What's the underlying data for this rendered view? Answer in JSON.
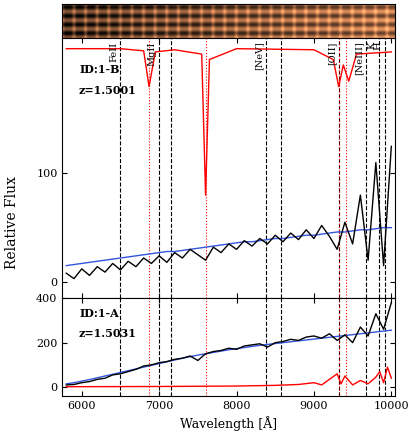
{
  "ylabel": "Relative Flux",
  "chart_data": [
    {
      "type": "line",
      "annotations": [
        "ID:1-B",
        "z=1.5001"
      ],
      "xlim": [
        5750,
        10050
      ],
      "ylim": [
        -15,
        225
      ],
      "xticks": [
        6000,
        7000,
        8000,
        9000,
        10000
      ],
      "yticks": [
        0,
        100
      ],
      "tick_labels": "y",
      "vlines": [
        {
          "x": 6500,
          "label": "FeII",
          "color": "#000000",
          "line_style": "dashed"
        },
        {
          "x": 7000,
          "label": "MgII",
          "color": "#000000",
          "line_style": "dashed"
        },
        {
          "x": 7150,
          "color": "#000000",
          "line_style": "dashed"
        },
        {
          "x": 8380,
          "label": "[NeV]",
          "color": "#000000",
          "line_style": "dashed"
        },
        {
          "x": 8570,
          "color": "#000000",
          "line_style": "dashed"
        },
        {
          "x": 9320,
          "label": "[OII]",
          "color": "#000000",
          "line_style": "dashed"
        },
        {
          "x": 9670,
          "label": "[NeIII]",
          "color": "#000000",
          "line_style": "dashed"
        },
        {
          "x": 9840,
          "label": "K",
          "color": "#000000",
          "line_style": "dashed"
        },
        {
          "x": 9920,
          "label": "H",
          "color": "#000000",
          "line_style": "dashed"
        },
        {
          "x": 6870,
          "color": "#ff0000",
          "line_style": "dotted"
        },
        {
          "x": 7600,
          "color": "#ff0000",
          "line_style": "dotted"
        },
        {
          "x": 9330,
          "color": "#ff0000",
          "line_style": "dotted"
        },
        {
          "x": 9420,
          "color": "#ff0000",
          "line_style": "dotted"
        }
      ],
      "series": [
        {
          "color": "#ff0000",
          "x": [
            5800,
            6500,
            6800,
            6870,
            6950,
            7200,
            7550,
            7600,
            7650,
            8000,
            9000,
            9250,
            9320,
            9380,
            9450,
            9550,
            10000
          ],
          "values": [
            215,
            215,
            213,
            180,
            212,
            214,
            210,
            80,
            205,
            215,
            214,
            205,
            180,
            200,
            185,
            210,
            212
          ]
        },
        {
          "color": "#3355dd",
          "x": [
            5800,
            5900,
            6000,
            6100,
            6200,
            6300,
            6400,
            6500,
            6600,
            6700,
            6800,
            6900,
            7000,
            7100,
            7200,
            7300,
            7400,
            7500,
            7600,
            7700,
            7800,
            7900,
            8000,
            8100,
            8200,
            8300,
            8400,
            8500,
            8600,
            8700,
            8800,
            8900,
            9000,
            9100,
            9200,
            9300,
            9400,
            9500,
            9600,
            9700,
            9800,
            9900,
            10000
          ],
          "values": [
            15,
            16,
            17,
            18,
            19,
            20,
            21,
            22,
            23,
            24,
            25,
            26,
            27,
            28,
            28,
            29,
            30,
            31,
            32,
            33,
            34,
            35,
            36,
            37,
            37,
            38,
            39,
            40,
            40,
            41,
            42,
            43,
            43,
            44,
            45,
            46,
            46,
            47,
            48,
            48,
            49,
            50,
            50
          ]
        },
        {
          "color": "#000000",
          "x": [
            5800,
            5900,
            6000,
            6100,
            6200,
            6300,
            6400,
            6500,
            6600,
            6700,
            6800,
            6900,
            7000,
            7100,
            7200,
            7300,
            7400,
            7500,
            7600,
            7700,
            7800,
            7900,
            8000,
            8100,
            8200,
            8300,
            8400,
            8500,
            8600,
            8700,
            8800,
            8900,
            9000,
            9100,
            9200,
            9300,
            9400,
            9500,
            9600,
            9700,
            9800,
            9900,
            10000
          ],
          "values": [
            8,
            3,
            12,
            6,
            14,
            9,
            17,
            11,
            19,
            14,
            22,
            17,
            24,
            18,
            27,
            22,
            30,
            25,
            20,
            32,
            27,
            35,
            30,
            38,
            33,
            40,
            35,
            43,
            37,
            45,
            39,
            48,
            40,
            52,
            42,
            30,
            55,
            35,
            80,
            20,
            110,
            15,
            125
          ]
        }
      ]
    },
    {
      "type": "line",
      "annotations": [
        "ID:1-A",
        "z=1.5031"
      ],
      "xlabel": "Wavelength [Å]",
      "xlim": [
        5750,
        10050
      ],
      "ylim": [
        -40,
        400
      ],
      "xticks": [
        6000,
        7000,
        8000,
        9000,
        10000
      ],
      "yticks": [
        0,
        200,
        400
      ],
      "vlines": [
        {
          "x": 6500,
          "color": "#000000",
          "line_style": "dashed"
        },
        {
          "x": 7000,
          "color": "#000000",
          "line_style": "dashed"
        },
        {
          "x": 7150,
          "color": "#000000",
          "line_style": "dashed"
        },
        {
          "x": 8380,
          "color": "#000000",
          "line_style": "dashed"
        },
        {
          "x": 8570,
          "color": "#000000",
          "line_style": "dashed"
        },
        {
          "x": 9320,
          "color": "#000000",
          "line_style": "dashed"
        },
        {
          "x": 9670,
          "color": "#000000",
          "line_style": "dashed"
        },
        {
          "x": 9840,
          "color": "#000000",
          "line_style": "dashed"
        },
        {
          "x": 9920,
          "color": "#000000",
          "line_style": "dashed"
        },
        {
          "x": 6870,
          "color": "#ff0000",
          "line_style": "dotted"
        },
        {
          "x": 7600,
          "color": "#ff0000",
          "line_style": "dotted"
        },
        {
          "x": 9330,
          "color": "#ff0000",
          "line_style": "dotted"
        },
        {
          "x": 9420,
          "color": "#ff0000",
          "line_style": "dotted"
        }
      ],
      "series": [
        {
          "color": "#ff0000",
          "x": [
            5800,
            7000,
            8000,
            8500,
            8800,
            9000,
            9100,
            9300,
            9350,
            9400,
            9500,
            9600,
            9700,
            9800,
            9850,
            9900,
            9950,
            10000
          ],
          "values": [
            2,
            3,
            5,
            8,
            12,
            20,
            10,
            60,
            15,
            50,
            10,
            30,
            15,
            45,
            70,
            20,
            90,
            40
          ]
        },
        {
          "color": "#3355dd",
          "x": [
            5800,
            5900,
            6000,
            6100,
            6200,
            6300,
            6400,
            6500,
            6600,
            6700,
            6800,
            6900,
            7000,
            7100,
            7200,
            7300,
            7400,
            7500,
            7600,
            7700,
            7800,
            7900,
            8000,
            8100,
            8200,
            8300,
            8400,
            8500,
            8600,
            8700,
            8800,
            8900,
            9000,
            9100,
            9200,
            9300,
            9400,
            9500,
            9600,
            9700,
            9800,
            9900,
            10000
          ],
          "values": [
            15,
            20,
            27,
            34,
            42,
            50,
            58,
            66,
            74,
            82,
            90,
            98,
            106,
            114,
            122,
            130,
            137,
            144,
            150,
            156,
            162,
            168,
            173,
            178,
            183,
            188,
            192,
            196,
            200,
            204,
            208,
            212,
            216,
            220,
            224,
            228,
            232,
            236,
            240,
            244,
            248,
            252,
            256
          ]
        },
        {
          "color": "#000000",
          "x": [
            5800,
            5900,
            6000,
            6100,
            6200,
            6300,
            6400,
            6500,
            6600,
            6700,
            6800,
            6900,
            7000,
            7100,
            7200,
            7300,
            7400,
            7500,
            7600,
            7700,
            7800,
            7900,
            8000,
            8100,
            8200,
            8300,
            8400,
            8500,
            8600,
            8700,
            8800,
            8900,
            9000,
            9100,
            9200,
            9300,
            9400,
            9500,
            9600,
            9700,
            9800,
            9900,
            10000
          ],
          "values": [
            10,
            12,
            20,
            25,
            35,
            40,
            55,
            60,
            70,
            80,
            95,
            100,
            110,
            115,
            125,
            130,
            140,
            120,
            150,
            160,
            165,
            175,
            170,
            185,
            190,
            195,
            180,
            200,
            205,
            215,
            210,
            225,
            230,
            220,
            240,
            210,
            235,
            200,
            270,
            230,
            330,
            260,
            380
          ]
        }
      ]
    }
  ]
}
